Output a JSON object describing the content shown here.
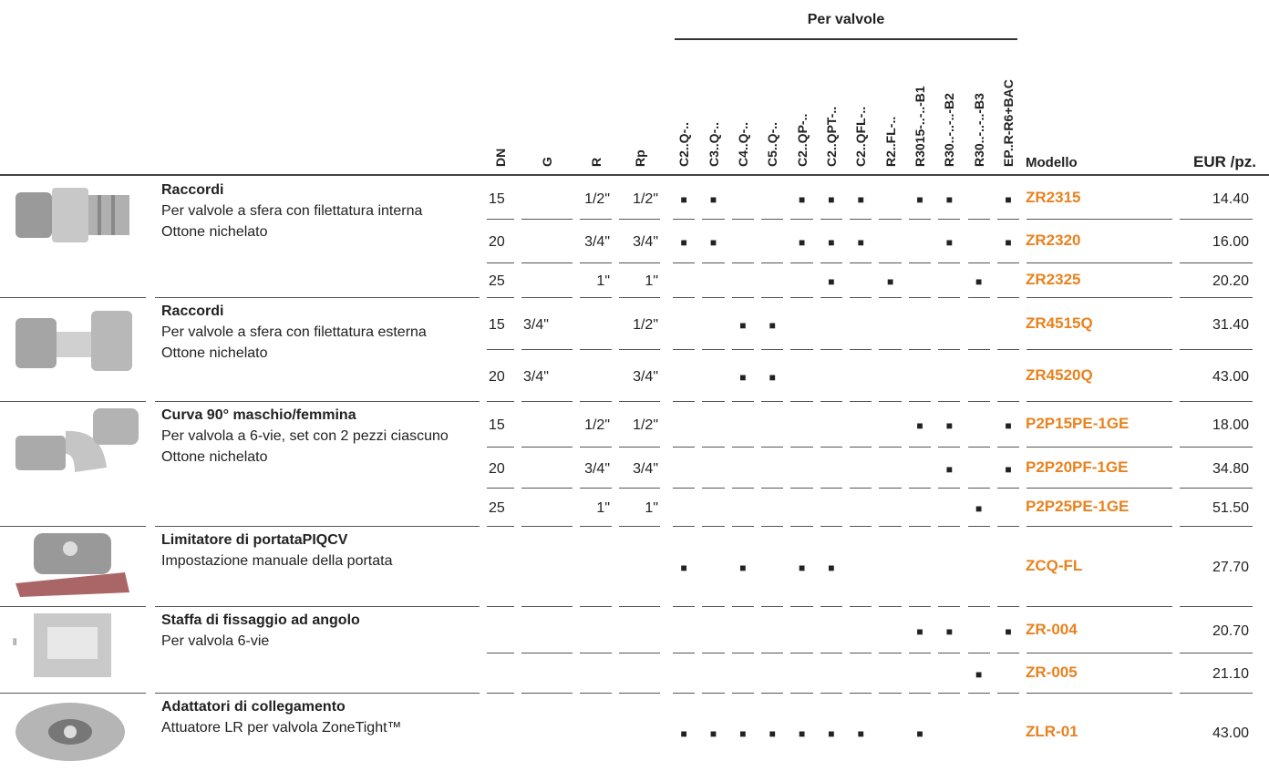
{
  "header": {
    "group_label": "Per valvole",
    "columns": [
      "DN",
      "G",
      "R",
      "Rp",
      "C2..Q-..",
      "C3..Q-..",
      "C4..Q-..",
      "C5..Q-..",
      "C2..QP-..",
      "C2..QPT-..",
      "C2..QFL-..",
      "R2..FL-..",
      "R3015-..-..-B1",
      "R30..-..-..-B2",
      "R30..-..-..-B3",
      "EP..R-R6+BAC"
    ],
    "model": "Modello",
    "price": "EUR /pz."
  },
  "groups": [
    {
      "title": "Raccordi",
      "description": "Per valvole a sfera con filettatura interna",
      "material": "Ottone nichelato",
      "rows": [
        {
          "cells": [
            "15",
            null,
            "1/2\"",
            "1/2\"",
            "■",
            "■",
            null,
            null,
            "■",
            "■",
            "■",
            null,
            "■",
            "■",
            null,
            "■"
          ],
          "model": "ZR2315",
          "price": "14.40"
        },
        {
          "cells": [
            "20",
            null,
            "3/4\"",
            "3/4\"",
            "■",
            "■",
            null,
            null,
            "■",
            "■",
            "■",
            null,
            null,
            "■",
            null,
            "■"
          ],
          "model": "ZR2320",
          "price": "16.00"
        },
        {
          "cells": [
            "25",
            null,
            "1\"",
            "1\"",
            null,
            null,
            null,
            null,
            null,
            "■",
            null,
            "■",
            null,
            null,
            "■",
            null
          ],
          "model": "ZR2325",
          "price": "20.20"
        }
      ]
    },
    {
      "title": "Raccordi",
      "description": "Per valvole a sfera con filettatura esterna",
      "material": "Ottone nichelato",
      "rows": [
        {
          "cells": [
            "15",
            "3/4\"",
            null,
            "1/2\"",
            null,
            null,
            "■",
            "■",
            null,
            null,
            null,
            null,
            null,
            null,
            null,
            null
          ],
          "model": "ZR4515Q",
          "price": "31.40"
        },
        {
          "cells": [
            "20",
            "3/4\"",
            null,
            "3/4\"",
            null,
            null,
            "■",
            "■",
            null,
            null,
            null,
            null,
            null,
            null,
            null,
            null
          ],
          "model": "ZR4520Q",
          "price": "43.00"
        }
      ]
    },
    {
      "title": "Curva 90° maschio/femmina",
      "description": "Per valvola a 6-vie, set con 2 pezzi ciascuno",
      "material": "Ottone nichelato",
      "rows": [
        {
          "cells": [
            "15",
            null,
            "1/2\"",
            "1/2\"",
            null,
            null,
            null,
            null,
            null,
            null,
            null,
            null,
            "■",
            "■",
            null,
            "■"
          ],
          "model": "P2P15PE-1GE",
          "price": "18.00"
        },
        {
          "cells": [
            "20",
            null,
            "3/4\"",
            "3/4\"",
            null,
            null,
            null,
            null,
            null,
            null,
            null,
            null,
            null,
            "■",
            null,
            "■"
          ],
          "model": "P2P20PF-1GE",
          "price": "34.80"
        },
        {
          "cells": [
            "25",
            null,
            "1\"",
            "1\"",
            null,
            null,
            null,
            null,
            null,
            null,
            null,
            null,
            null,
            null,
            "■",
            null
          ],
          "model": "P2P25PE-1GE",
          "price": "51.50"
        }
      ]
    },
    {
      "title": "Limitatore di portataPIQCV",
      "description": "Impostazione manuale della portata",
      "rows": [
        {
          "cells": [
            null,
            null,
            null,
            null,
            "■",
            null,
            "■",
            null,
            "■",
            "■",
            null,
            null,
            null,
            null,
            null,
            null
          ],
          "model": "ZCQ-FL",
          "price": "27.70"
        }
      ]
    },
    {
      "title": "Staffa di fissaggio ad angolo",
      "description": "Per valvola 6-vie",
      "rows": [
        {
          "cells": [
            null,
            null,
            null,
            null,
            null,
            null,
            null,
            null,
            null,
            null,
            null,
            null,
            "■",
            "■",
            null,
            "■"
          ],
          "model": "ZR-004",
          "price": "20.70"
        },
        {
          "cells": [
            null,
            null,
            null,
            null,
            null,
            null,
            null,
            null,
            null,
            null,
            null,
            null,
            null,
            null,
            "■",
            null
          ],
          "model": "ZR-005",
          "price": "21.10"
        }
      ]
    },
    {
      "title": "Adattatori di collegamento",
      "description": "Attuatore LR per valvola ZoneTight™",
      "rows": [
        {
          "cells": [
            null,
            null,
            null,
            null,
            "■",
            "■",
            "■",
            "■",
            "■",
            "■",
            "■",
            null,
            "■",
            null,
            null,
            null
          ],
          "model": "ZLR-01",
          "price": "43.00"
        }
      ]
    }
  ]
}
